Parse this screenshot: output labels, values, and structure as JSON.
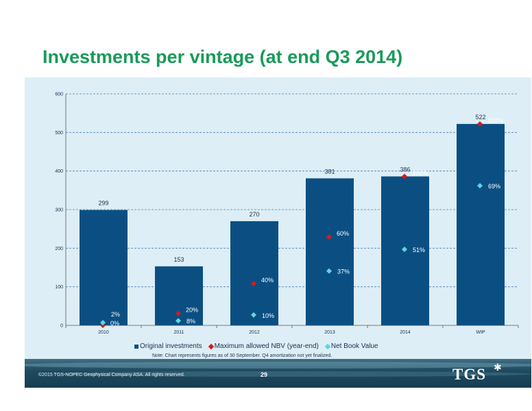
{
  "slide": {
    "title": "Investments per vintage (at end Q3 2014)",
    "note": "Note: Chart represents figures as of 30 September. Q4 amortization not yet finalized.",
    "copyright": "©2015 TGS-NOPEC Geophysical Company ASA. All rights reserved.",
    "page_number": "29",
    "logo_text": "TGS"
  },
  "colors": {
    "title": "#1a9a5a",
    "bar": "#0b4f82",
    "max_nbv": "#d7191c",
    "net_book_value": "#5ad7e0",
    "panel": "#ddeef6",
    "grid": "#4a7fb8"
  },
  "chart_data": {
    "type": "bar",
    "categories": [
      "2010",
      "2011",
      "2012",
      "2013",
      "2014",
      "WIP"
    ],
    "ylim": [
      0,
      600
    ],
    "yticks": [
      0,
      100,
      200,
      300,
      400,
      500,
      600
    ],
    "xlabel": "",
    "ylabel": "",
    "grid": true,
    "legend_position": "bottom",
    "series": [
      {
        "name": "Original investments",
        "type": "bar",
        "values": [
          299,
          153,
          270,
          381,
          386,
          522
        ],
        "labels": [
          "299",
          "153",
          "270",
          "381",
          "386",
          "522"
        ]
      },
      {
        "name": "Maximum allowed NBV (year-end)",
        "type": "scatter",
        "marker": "diamond",
        "values": [
          0,
          31,
          108,
          229,
          386,
          522
        ],
        "labels": [
          "0%",
          "20%",
          "40%",
          "60%",
          "100%",
          "100%"
        ]
      },
      {
        "name": "Net Book Value",
        "type": "scatter",
        "marker": "diamond",
        "values": [
          7,
          12,
          27,
          141,
          197,
          362
        ],
        "labels": [
          "2%",
          "8%",
          "10%",
          "37%",
          "51%",
          "69%"
        ]
      }
    ]
  }
}
